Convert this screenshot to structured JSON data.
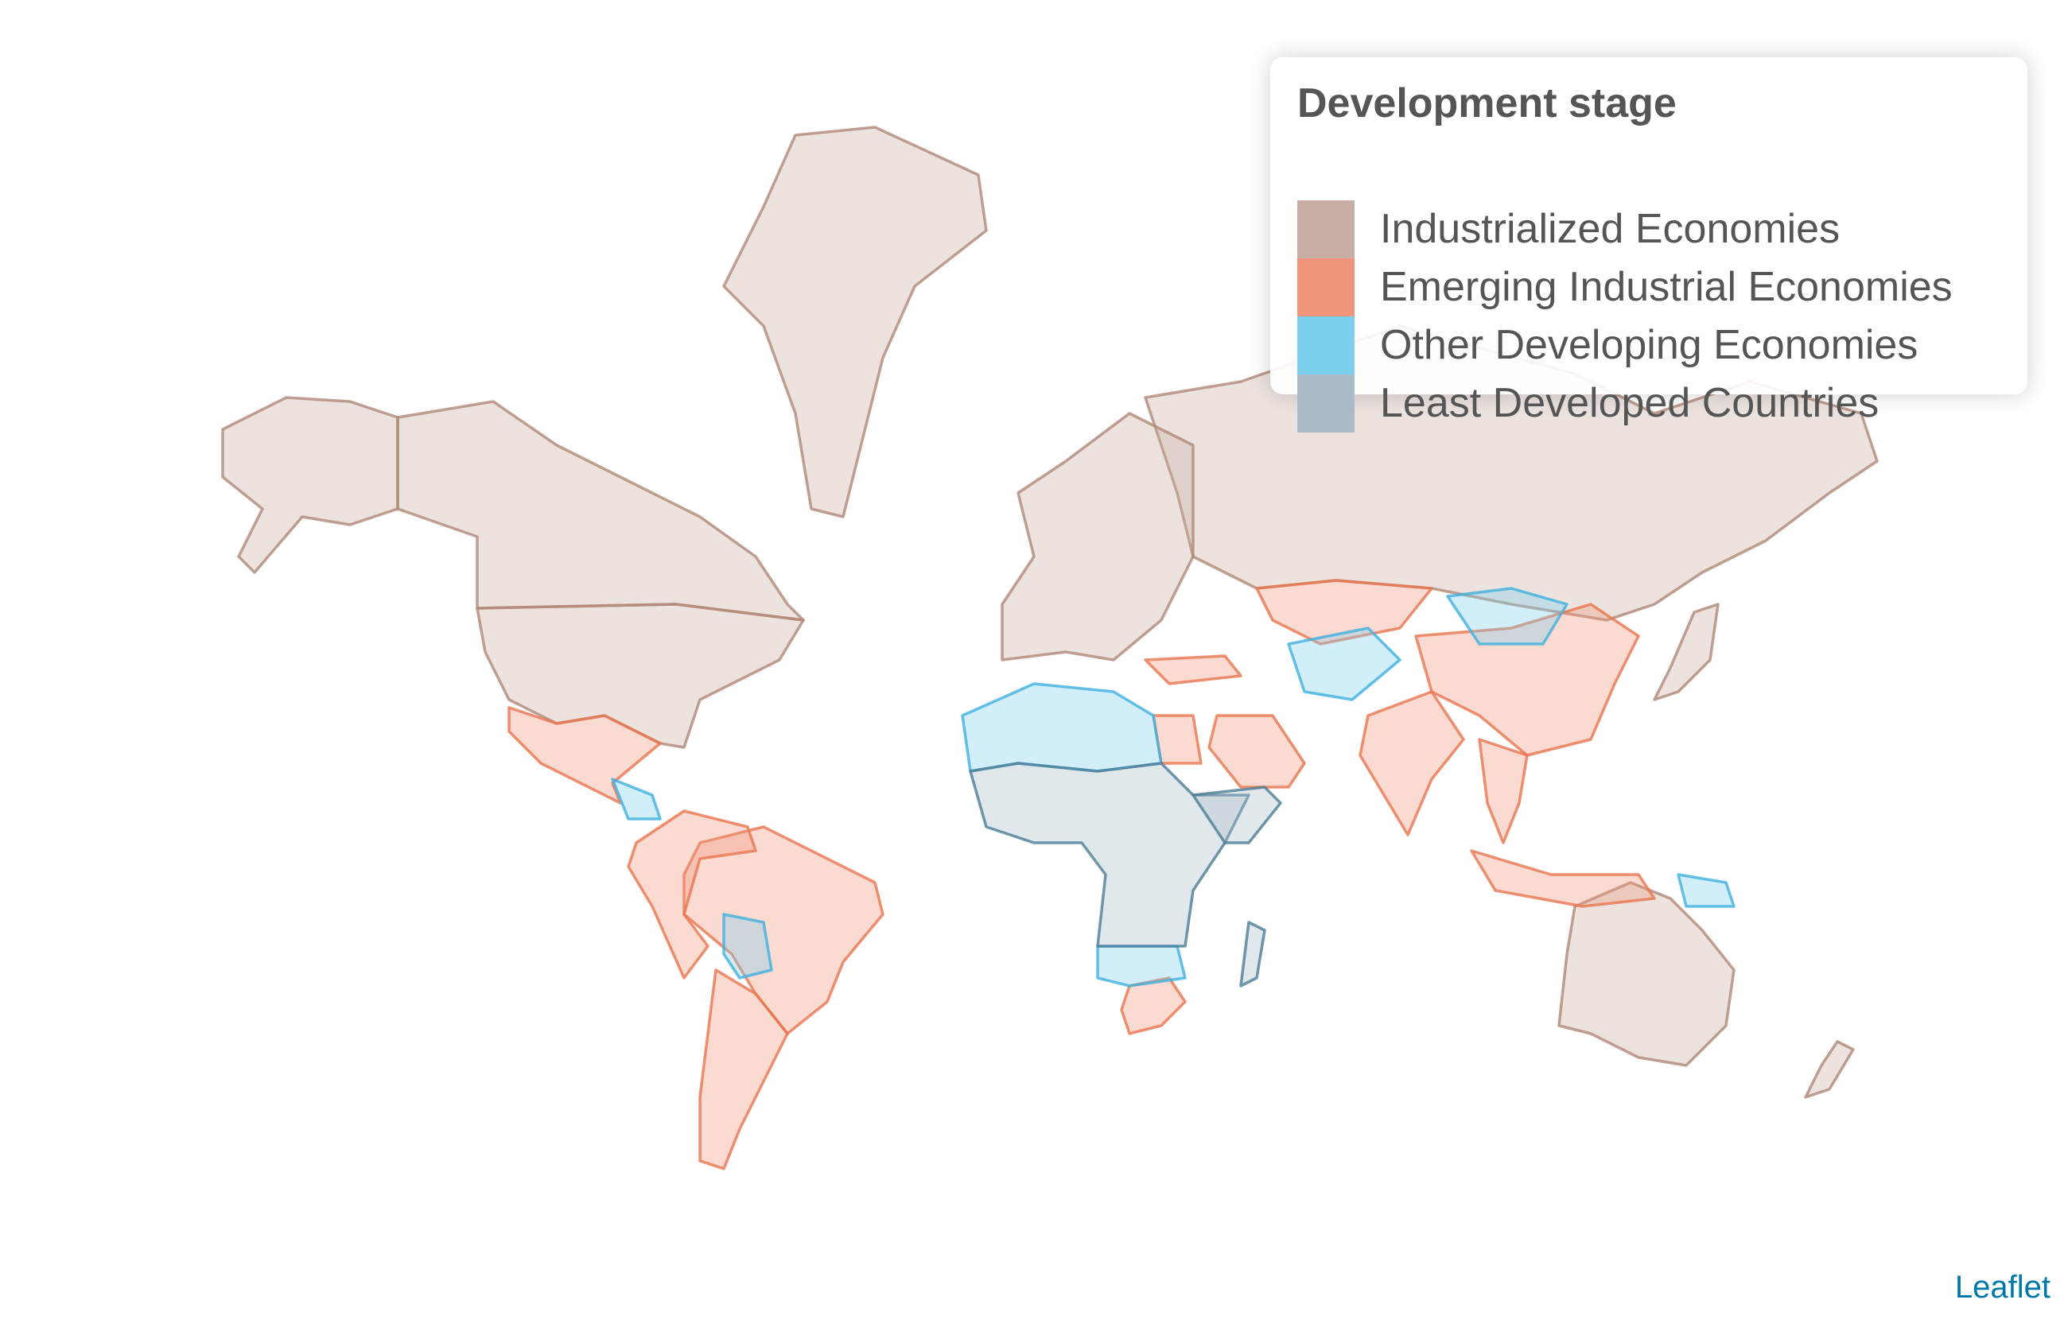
{
  "legend": {
    "title": "Development stage",
    "items": [
      {
        "label": "Industrialized Economies",
        "color": "#c9aea3"
      },
      {
        "label": "Emerging Industrial Economies",
        "color": "#f0947a"
      },
      {
        "label": "Other Developing Economies",
        "color": "#7ccfee"
      },
      {
        "label": "Least Developed Countries",
        "color": "#a9bcc8"
      }
    ]
  },
  "attribution": "Leaflet",
  "regions": [
    {
      "name": "Canada",
      "category": "industrialized"
    },
    {
      "name": "United States",
      "category": "industrialized"
    },
    {
      "name": "Alaska",
      "category": "industrialized"
    },
    {
      "name": "Greenland",
      "category": "industrialized"
    },
    {
      "name": "Russia",
      "category": "industrialized"
    },
    {
      "name": "Europe",
      "category": "industrialized"
    },
    {
      "name": "Japan",
      "category": "industrialized"
    },
    {
      "name": "Australia",
      "category": "industrialized"
    },
    {
      "name": "New Zealand",
      "category": "industrialized"
    },
    {
      "name": "Mexico",
      "category": "emerging"
    },
    {
      "name": "Brazil",
      "category": "emerging"
    },
    {
      "name": "Colombia-Venezuela-Peru",
      "category": "emerging"
    },
    {
      "name": "Argentina-Chile",
      "category": "emerging"
    },
    {
      "name": "South Africa",
      "category": "emerging"
    },
    {
      "name": "Egypt",
      "category": "emerging"
    },
    {
      "name": "Saudi Arabia",
      "category": "emerging"
    },
    {
      "name": "Turkey",
      "category": "emerging"
    },
    {
      "name": "Kazakhstan",
      "category": "emerging"
    },
    {
      "name": "China",
      "category": "emerging"
    },
    {
      "name": "India",
      "category": "emerging"
    },
    {
      "name": "Southeast Asia",
      "category": "emerging"
    },
    {
      "name": "Indonesia",
      "category": "emerging"
    },
    {
      "name": "North Africa",
      "category": "other"
    },
    {
      "name": "Mongolia",
      "category": "other"
    },
    {
      "name": "Central Asia",
      "category": "other"
    },
    {
      "name": "Bolivia",
      "category": "other"
    },
    {
      "name": "Central America",
      "category": "other"
    },
    {
      "name": "Southern Africa",
      "category": "other"
    },
    {
      "name": "Papua New Guinea",
      "category": "other"
    },
    {
      "name": "Sub-Saharan Africa",
      "category": "least"
    },
    {
      "name": "Madagascar",
      "category": "least"
    },
    {
      "name": "Horn of Africa",
      "category": "least"
    }
  ]
}
